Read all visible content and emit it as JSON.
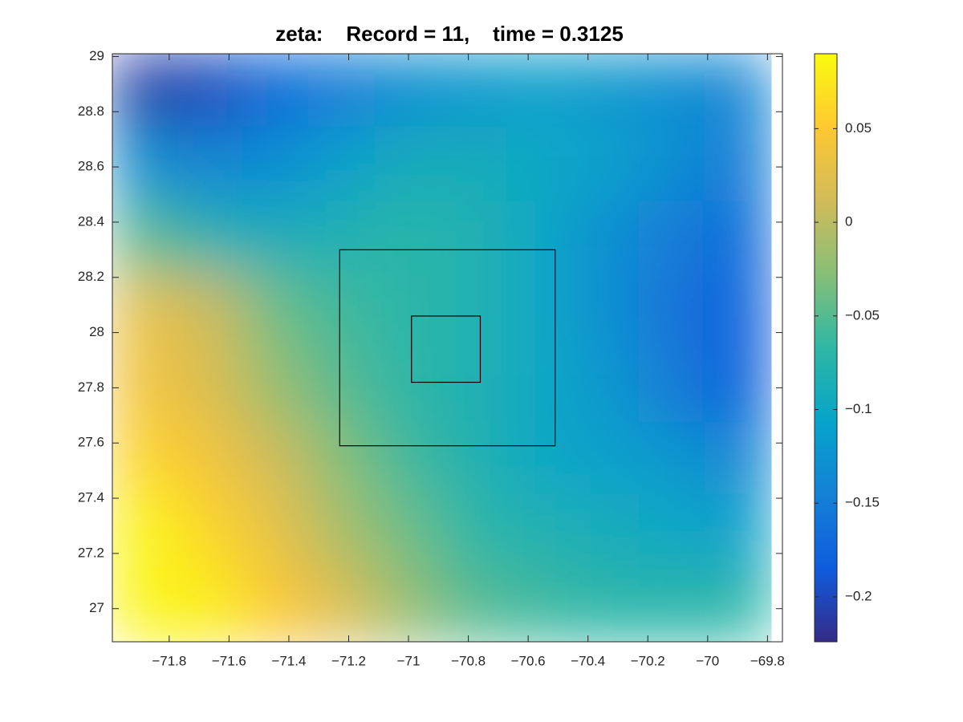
{
  "chart_data": {
    "type": "heatmap",
    "title": "zeta:    Record = 11,    time = 0.3125",
    "colormap": "parula",
    "x": [
      -71.88,
      -71.66,
      -71.44,
      -71.22,
      -71.0,
      -70.78,
      -70.56,
      -70.34,
      -70.12,
      -69.9
    ],
    "y": [
      27.01,
      27.28,
      27.55,
      27.81,
      28.08,
      28.35,
      28.61,
      28.88
    ],
    "z": [
      [
        0.085,
        0.08,
        0.05,
        0.02,
        -0.02,
        -0.05,
        -0.06,
        -0.07,
        -0.07,
        -0.07
      ],
      [
        0.085,
        0.06,
        0.03,
        -0.01,
        -0.04,
        -0.07,
        -0.08,
        -0.09,
        -0.1,
        -0.11
      ],
      [
        0.06,
        0.04,
        0.01,
        -0.03,
        -0.06,
        -0.08,
        -0.1,
        -0.11,
        -0.12,
        -0.14
      ],
      [
        0.04,
        0.02,
        -0.02,
        -0.05,
        -0.07,
        -0.08,
        -0.1,
        -0.12,
        -0.15,
        -0.18
      ],
      [
        0.03,
        0.01,
        -0.04,
        -0.06,
        -0.07,
        -0.08,
        -0.1,
        -0.13,
        -0.16,
        -0.18
      ],
      [
        -0.05,
        -0.08,
        -0.09,
        -0.08,
        -0.07,
        -0.08,
        -0.1,
        -0.13,
        -0.15,
        -0.17
      ],
      [
        -0.13,
        -0.14,
        -0.13,
        -0.11,
        -0.09,
        -0.09,
        -0.1,
        -0.11,
        -0.13,
        -0.15
      ],
      [
        -0.21,
        -0.2,
        -0.17,
        -0.15,
        -0.13,
        -0.12,
        -0.11,
        -0.12,
        -0.13,
        -0.14
      ]
    ],
    "boxes": [
      {
        "x": [
          -71.23,
          -70.51
        ],
        "y": [
          27.59,
          28.3
        ]
      },
      {
        "x": [
          -70.99,
          -70.76
        ],
        "y": [
          27.82,
          28.06
        ]
      }
    ],
    "xlim": [
      -71.99,
      -69.75
    ],
    "ylim": [
      26.88,
      29.01
    ],
    "clim": [
      -0.224,
      0.09
    ],
    "xticks": [
      {
        "value": -71.8,
        "label": "−71.8"
      },
      {
        "value": -71.6,
        "label": "−71.6"
      },
      {
        "value": -71.4,
        "label": "−71.4"
      },
      {
        "value": -71.2,
        "label": "−71.2"
      },
      {
        "value": -71,
        "label": "−71"
      },
      {
        "value": -70.8,
        "label": "−70.8"
      },
      {
        "value": -70.6,
        "label": "−70.6"
      },
      {
        "value": -70.4,
        "label": "−70.4"
      },
      {
        "value": -70.2,
        "label": "−70.2"
      },
      {
        "value": -70,
        "label": "−70"
      },
      {
        "value": -69.8,
        "label": "−69.8"
      }
    ],
    "yticks": [
      27,
      27.2,
      27.4,
      27.6,
      27.8,
      28,
      28.2,
      28.4,
      28.6,
      28.8,
      29
    ],
    "cticks": [
      {
        "value": -0.2,
        "label": "−0.2"
      },
      {
        "value": -0.15,
        "label": "−0.15"
      },
      {
        "value": -0.1,
        "label": "−0.1"
      },
      {
        "value": -0.05,
        "label": "−0.05"
      },
      0,
      0.05
    ]
  }
}
